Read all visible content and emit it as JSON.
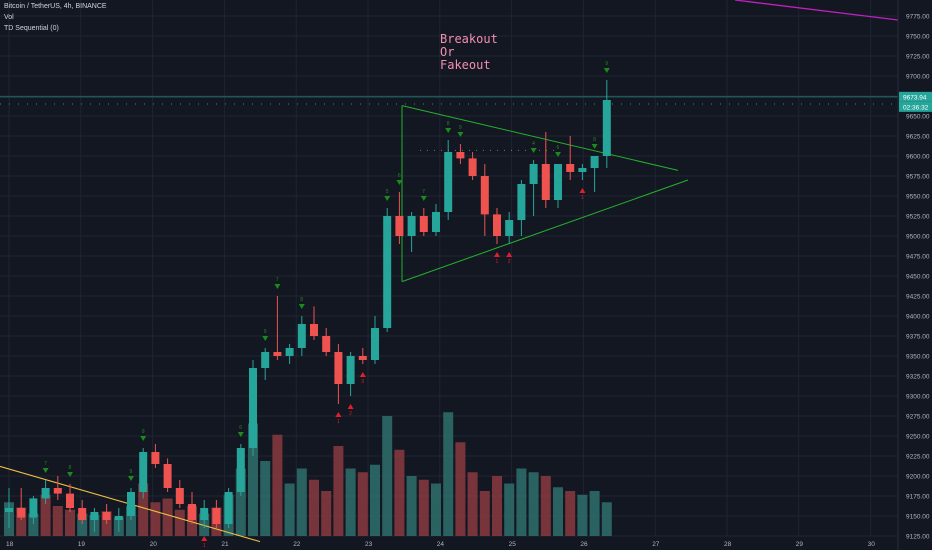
{
  "header": {
    "symbol_line": "Bitcoin / TetherUS, 4h, BINANCE",
    "volume_label": "Vol",
    "indicator_label": "TD Sequential (0)"
  },
  "annotation": {
    "line1": "Breakout",
    "line2": "Or",
    "line3": "Fakeout"
  },
  "price_labels": {
    "last_price": "9673.94",
    "countdown": "02:36:32"
  },
  "colors": {
    "background": "#131722",
    "grid": "#1f2433",
    "up_candle": "#26a69a",
    "down_candle": "#ef5350",
    "vol_up": "#2f6f6c",
    "vol_down": "#8b3a40",
    "triangle": "#26b02b",
    "annotation": "#f48fb1",
    "td_buy_marker": "#1c8a1c",
    "td_sell_marker": "#e01e2c",
    "trendline_magenta": "#c020c0",
    "trendline_yellow": "#f0c040",
    "price_line": "#26a69a"
  },
  "chart_data": {
    "type": "candlestick",
    "interval": "4h",
    "y_axis": {
      "side": "right",
      "ylim": [
        9125,
        9790
      ],
      "ticks": [
        "9775.00",
        "9750.00",
        "9725.00",
        "9700.00",
        "9675.00",
        "9650.00",
        "9625.00",
        "9600.00",
        "9575.00",
        "9550.00",
        "9525.00",
        "9500.00",
        "9475.00",
        "9450.00",
        "9425.00",
        "9400.00",
        "9375.00",
        "9350.00",
        "9325.00",
        "9300.00",
        "9275.00",
        "9250.00",
        "9225.00",
        "9200.00",
        "9175.00",
        "9150.00",
        "9125.00"
      ]
    },
    "x_axis": {
      "ticks": [
        "18",
        "19",
        "20",
        "21",
        "22",
        "23",
        "24",
        "25",
        "26",
        "27",
        "28",
        "29",
        "30"
      ]
    },
    "candles": [
      {
        "o": 9155,
        "h": 9185,
        "l": 9135,
        "c": 9160
      },
      {
        "o": 9160,
        "h": 9185,
        "l": 9145,
        "c": 9148
      },
      {
        "o": 9148,
        "h": 9175,
        "l": 9140,
        "c": 9172
      },
      {
        "o": 9172,
        "h": 9195,
        "l": 9165,
        "c": 9185
      },
      {
        "o": 9185,
        "h": 9200,
        "l": 9170,
        "c": 9178
      },
      {
        "o": 9178,
        "h": 9190,
        "l": 9155,
        "c": 9160
      },
      {
        "o": 9160,
        "h": 9170,
        "l": 9140,
        "c": 9145
      },
      {
        "o": 9145,
        "h": 9160,
        "l": 9130,
        "c": 9155
      },
      {
        "o": 9155,
        "h": 9165,
        "l": 9140,
        "c": 9145
      },
      {
        "o": 9145,
        "h": 9160,
        "l": 9130,
        "c": 9150
      },
      {
        "o": 9150,
        "h": 9185,
        "l": 9145,
        "c": 9180
      },
      {
        "o": 9180,
        "h": 9235,
        "l": 9172,
        "c": 9230
      },
      {
        "o": 9230,
        "h": 9240,
        "l": 9210,
        "c": 9215
      },
      {
        "o": 9215,
        "h": 9222,
        "l": 9180,
        "c": 9185
      },
      {
        "o": 9185,
        "h": 9195,
        "l": 9160,
        "c": 9165
      },
      {
        "o": 9165,
        "h": 9180,
        "l": 9140,
        "c": 9145
      },
      {
        "o": 9145,
        "h": 9170,
        "l": 9135,
        "c": 9160
      },
      {
        "o": 9160,
        "h": 9170,
        "l": 9135,
        "c": 9140
      },
      {
        "o": 9140,
        "h": 9185,
        "l": 9135,
        "c": 9180
      },
      {
        "o": 9180,
        "h": 9240,
        "l": 9175,
        "c": 9235
      },
      {
        "o": 9235,
        "h": 9345,
        "l": 9225,
        "c": 9335
      },
      {
        "o": 9335,
        "h": 9360,
        "l": 9320,
        "c": 9355
      },
      {
        "o": 9355,
        "h": 9425,
        "l": 9345,
        "c": 9350
      },
      {
        "o": 9350,
        "h": 9365,
        "l": 9340,
        "c": 9360
      },
      {
        "o": 9360,
        "h": 9400,
        "l": 9350,
        "c": 9390
      },
      {
        "o": 9390,
        "h": 9412,
        "l": 9370,
        "c": 9375
      },
      {
        "o": 9375,
        "h": 9385,
        "l": 9350,
        "c": 9355
      },
      {
        "o": 9355,
        "h": 9365,
        "l": 9290,
        "c": 9315
      },
      {
        "o": 9315,
        "h": 9355,
        "l": 9300,
        "c": 9350
      },
      {
        "o": 9350,
        "h": 9360,
        "l": 9340,
        "c": 9345
      },
      {
        "o": 9345,
        "h": 9400,
        "l": 9340,
        "c": 9385
      },
      {
        "o": 9385,
        "h": 9535,
        "l": 9380,
        "c": 9525
      },
      {
        "o": 9525,
        "h": 9555,
        "l": 9490,
        "c": 9500
      },
      {
        "o": 9500,
        "h": 9530,
        "l": 9480,
        "c": 9525
      },
      {
        "o": 9525,
        "h": 9535,
        "l": 9500,
        "c": 9505
      },
      {
        "o": 9505,
        "h": 9540,
        "l": 9500,
        "c": 9530
      },
      {
        "o": 9530,
        "h": 9620,
        "l": 9520,
        "c": 9605
      },
      {
        "o": 9605,
        "h": 9615,
        "l": 9590,
        "c": 9597
      },
      {
        "o": 9597,
        "h": 9605,
        "l": 9570,
        "c": 9575
      },
      {
        "o": 9575,
        "h": 9590,
        "l": 9500,
        "c": 9527
      },
      {
        "o": 9527,
        "h": 9535,
        "l": 9490,
        "c": 9500
      },
      {
        "o": 9500,
        "h": 9530,
        "l": 9490,
        "c": 9520
      },
      {
        "o": 9520,
        "h": 9570,
        "l": 9500,
        "c": 9565
      },
      {
        "o": 9565,
        "h": 9595,
        "l": 9525,
        "c": 9590
      },
      {
        "o": 9590,
        "h": 9630,
        "l": 9535,
        "c": 9545
      },
      {
        "o": 9545,
        "h": 9590,
        "l": 9535,
        "c": 9590
      },
      {
        "o": 9590,
        "h": 9625,
        "l": 9570,
        "c": 9580
      },
      {
        "o": 9580,
        "h": 9590,
        "l": 9570,
        "c": 9585
      },
      {
        "o": 9585,
        "h": 9600,
        "l": 9555,
        "c": 9600
      },
      {
        "o": 9600,
        "h": 9695,
        "l": 9585,
        "c": 9670
      }
    ],
    "volume": [
      {
        "v": 45,
        "up": true
      },
      {
        "v": 38,
        "up": false
      },
      {
        "v": 30,
        "up": true
      },
      {
        "v": 55,
        "up": false
      },
      {
        "v": 40,
        "up": false
      },
      {
        "v": 35,
        "up": false
      },
      {
        "v": 30,
        "up": true
      },
      {
        "v": 28,
        "up": true
      },
      {
        "v": 33,
        "up": false
      },
      {
        "v": 25,
        "up": true
      },
      {
        "v": 40,
        "up": true
      },
      {
        "v": 70,
        "up": false
      },
      {
        "v": 45,
        "up": false
      },
      {
        "v": 50,
        "up": false
      },
      {
        "v": 35,
        "up": false
      },
      {
        "v": 40,
        "up": false
      },
      {
        "v": 30,
        "up": true
      },
      {
        "v": 38,
        "up": false
      },
      {
        "v": 55,
        "up": true
      },
      {
        "v": 90,
        "up": true
      },
      {
        "v": 150,
        "up": true
      },
      {
        "v": 100,
        "up": true
      },
      {
        "v": 135,
        "up": false
      },
      {
        "v": 70,
        "up": true
      },
      {
        "v": 90,
        "up": true
      },
      {
        "v": 75,
        "up": false
      },
      {
        "v": 60,
        "up": false
      },
      {
        "v": 120,
        "up": false
      },
      {
        "v": 90,
        "up": true
      },
      {
        "v": 85,
        "up": false
      },
      {
        "v": 95,
        "up": true
      },
      {
        "v": 160,
        "up": true
      },
      {
        "v": 115,
        "up": false
      },
      {
        "v": 80,
        "up": true
      },
      {
        "v": 75,
        "up": false
      },
      {
        "v": 70,
        "up": true
      },
      {
        "v": 165,
        "up": true
      },
      {
        "v": 125,
        "up": false
      },
      {
        "v": 85,
        "up": false
      },
      {
        "v": 60,
        "up": false
      },
      {
        "v": 80,
        "up": false
      },
      {
        "v": 70,
        "up": true
      },
      {
        "v": 90,
        "up": true
      },
      {
        "v": 85,
        "up": true
      },
      {
        "v": 80,
        "up": false
      },
      {
        "v": 65,
        "up": true
      },
      {
        "v": 60,
        "up": false
      },
      {
        "v": 55,
        "up": true
      },
      {
        "v": 60,
        "up": true
      },
      {
        "v": 45,
        "up": true
      }
    ],
    "td_markers": [
      {
        "i": 3,
        "type": "buy",
        "label": "7"
      },
      {
        "i": 5,
        "type": "buy",
        "label": "8"
      },
      {
        "i": 10,
        "type": "buy",
        "label": "9"
      },
      {
        "i": 11,
        "type": "buy",
        "label": "9"
      },
      {
        "i": 16,
        "type": "sell",
        "label": "1"
      },
      {
        "i": 19,
        "type": "buy",
        "label": "6"
      },
      {
        "i": 21,
        "type": "buy",
        "label": "9"
      },
      {
        "i": 22,
        "type": "buy",
        "label": "7"
      },
      {
        "i": 24,
        "type": "buy",
        "label": "8"
      },
      {
        "i": 27,
        "type": "sell",
        "label": "1"
      },
      {
        "i": 28,
        "type": "sell",
        "label": "2"
      },
      {
        "i": 29,
        "type": "sell",
        "label": "3"
      },
      {
        "i": 31,
        "type": "buy",
        "label": "5"
      },
      {
        "i": 32,
        "type": "buy",
        "label": "6"
      },
      {
        "i": 34,
        "type": "buy",
        "label": "7"
      },
      {
        "i": 36,
        "type": "buy",
        "label": "8"
      },
      {
        "i": 37,
        "type": "buy",
        "label": "9"
      },
      {
        "i": 40,
        "type": "sell",
        "label": "1"
      },
      {
        "i": 41,
        "type": "sell",
        "label": "2"
      },
      {
        "i": 43,
        "type": "buy",
        "label": "4"
      },
      {
        "i": 45,
        "type": "buy",
        "label": "6"
      },
      {
        "i": 47,
        "type": "sell",
        "label": "1"
      },
      {
        "i": 48,
        "type": "buy",
        "label": "8"
      },
      {
        "i": 49,
        "type": "buy",
        "label": "9"
      }
    ],
    "triangle": {
      "upper": [
        [
          9663,
          0
        ],
        [
          9582,
          1
        ]
      ],
      "lower": [
        [
          9443,
          0
        ],
        [
          9570,
          1
        ]
      ],
      "left_edge_price_top": 9663,
      "left_edge_price_bottom": 9443
    },
    "last_price": 9673.94
  }
}
